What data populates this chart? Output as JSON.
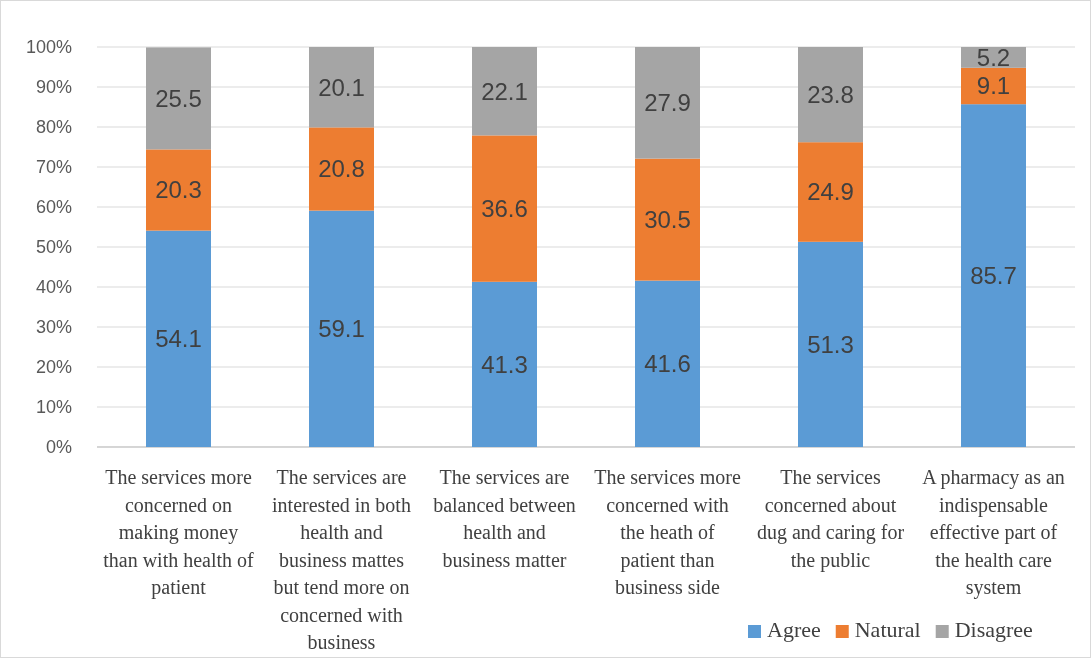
{
  "chart_data": {
    "type": "bar",
    "stacked": true,
    "categories": [
      "The services more concerned on making money than with health of patient",
      "The services are interested in both health and business mattes but tend more on concerned with business",
      "The services are balanced between health and business matter",
      "The services more concerned with the heath of patient than business side",
      "The services concerned about dug and caring for the public",
      "A pharmacy as an indispensable effective part of the health care system"
    ],
    "series": [
      {
        "name": "Agree",
        "color": "#5b9bd5",
        "values": [
          54.1,
          59.1,
          41.3,
          41.6,
          51.3,
          85.7
        ]
      },
      {
        "name": "Natural",
        "color": "#ed7d31",
        "values": [
          20.3,
          20.8,
          36.6,
          30.5,
          24.9,
          9.1
        ]
      },
      {
        "name": "Disagree",
        "color": "#a5a5a5",
        "values": [
          25.5,
          20.1,
          22.1,
          27.9,
          23.8,
          5.2
        ]
      }
    ],
    "ylim": [
      0,
      100
    ],
    "yticks": [
      {
        "value": 0,
        "label": "0%"
      },
      {
        "value": 10,
        "label": "10%"
      },
      {
        "value": 20,
        "label": "20%"
      },
      {
        "value": 30,
        "label": "30%"
      },
      {
        "value": 40,
        "label": "40%"
      },
      {
        "value": 50,
        "label": "50%"
      },
      {
        "value": 60,
        "label": "60%"
      },
      {
        "value": 70,
        "label": "70%"
      },
      {
        "value": 80,
        "label": "80%"
      },
      {
        "value": 90,
        "label": "90%"
      },
      {
        "value": 100,
        "label": "100%"
      }
    ],
    "grid": "y",
    "legend": "bottom right",
    "data_labels": true
  }
}
